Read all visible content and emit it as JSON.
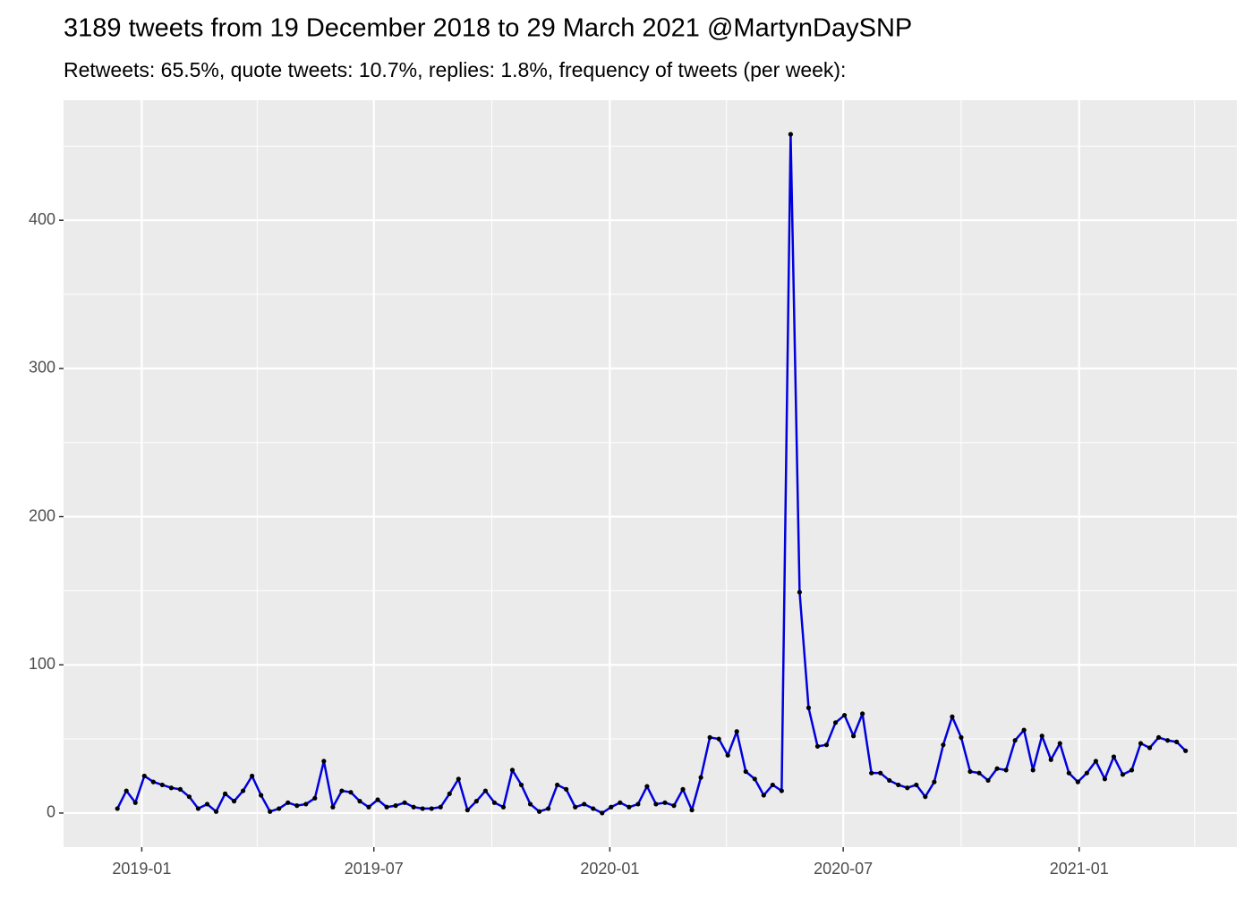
{
  "chart_data": {
    "type": "line",
    "title": "3189 tweets from 19 December 2018 to 29 March 2021 @MartynDaySNP",
    "subtitle": "Retweets: 65.5%, quote tweets: 10.7%, replies: 1.8%, frequency of tweets (per week):",
    "x": [
      "2018-12-13",
      "2018-12-20",
      "2018-12-27",
      "2019-01-03",
      "2019-01-10",
      "2019-01-17",
      "2019-01-24",
      "2019-01-31",
      "2019-02-07",
      "2019-02-14",
      "2019-02-21",
      "2019-02-28",
      "2019-03-07",
      "2019-03-14",
      "2019-03-21",
      "2019-03-28",
      "2019-04-04",
      "2019-04-11",
      "2019-04-18",
      "2019-04-25",
      "2019-05-02",
      "2019-05-09",
      "2019-05-16",
      "2019-05-23",
      "2019-05-30",
      "2019-06-06",
      "2019-06-13",
      "2019-06-20",
      "2019-06-27",
      "2019-07-04",
      "2019-07-11",
      "2019-07-18",
      "2019-07-25",
      "2019-08-01",
      "2019-08-08",
      "2019-08-15",
      "2019-08-22",
      "2019-08-29",
      "2019-09-05",
      "2019-09-12",
      "2019-09-19",
      "2019-09-26",
      "2019-10-03",
      "2019-10-10",
      "2019-10-17",
      "2019-10-24",
      "2019-10-31",
      "2019-11-07",
      "2019-11-14",
      "2019-11-21",
      "2019-11-28",
      "2019-12-05",
      "2019-12-12",
      "2019-12-19",
      "2019-12-26",
      "2020-01-02",
      "2020-01-09",
      "2020-01-16",
      "2020-01-23",
      "2020-01-30",
      "2020-02-06",
      "2020-02-13",
      "2020-02-20",
      "2020-02-27",
      "2020-03-05",
      "2020-03-12",
      "2020-03-19",
      "2020-03-26",
      "2020-04-02",
      "2020-04-09",
      "2020-04-16",
      "2020-04-23",
      "2020-04-30",
      "2020-05-07",
      "2020-05-14",
      "2020-05-21",
      "2020-05-28",
      "2020-06-04",
      "2020-06-11",
      "2020-06-18",
      "2020-06-25",
      "2020-07-02",
      "2020-07-09",
      "2020-07-16",
      "2020-07-23",
      "2020-07-30",
      "2020-08-06",
      "2020-08-13",
      "2020-08-20",
      "2020-08-27",
      "2020-09-03",
      "2020-09-10",
      "2020-09-17",
      "2020-09-24",
      "2020-10-01",
      "2020-10-08",
      "2020-10-15",
      "2020-10-22",
      "2020-10-29",
      "2020-11-05",
      "2020-11-12",
      "2020-11-19",
      "2020-11-26",
      "2020-12-03",
      "2020-12-10",
      "2020-12-17",
      "2020-12-24",
      "2020-12-31",
      "2021-01-07",
      "2021-01-14",
      "2021-01-21",
      "2021-01-28",
      "2021-02-04",
      "2021-02-11",
      "2021-02-18",
      "2021-02-25",
      "2021-03-04",
      "2021-03-11",
      "2021-03-18",
      "2021-03-25"
    ],
    "values": [
      3,
      15,
      7,
      25,
      21,
      19,
      17,
      16,
      11,
      3,
      6,
      1,
      13,
      8,
      15,
      25,
      12,
      1,
      3,
      7,
      5,
      6,
      10,
      35,
      4,
      15,
      14,
      8,
      4,
      9,
      4,
      5,
      7,
      4,
      3,
      3,
      4,
      13,
      23,
      2,
      8,
      15,
      7,
      4,
      29,
      19,
      6,
      1,
      3,
      19,
      16,
      4,
      6,
      3,
      0,
      4,
      7,
      4,
      6,
      18,
      6,
      7,
      5,
      16,
      2,
      24,
      51,
      50,
      39,
      55,
      28,
      23,
      12,
      19,
      15,
      458,
      149,
      71,
      45,
      46,
      61,
      66,
      52,
      67,
      27,
      27,
      22,
      19,
      17,
      19,
      11,
      21,
      46,
      65,
      51,
      28,
      27,
      22,
      30,
      29,
      49,
      56,
      29,
      52,
      36,
      47,
      27,
      21,
      27,
      35,
      23,
      38,
      26,
      29,
      47,
      44,
      51,
      49,
      48,
      42
    ],
    "color": "#0000dd",
    "point_color": "#000000",
    "xlim": [
      "2018-11-01",
      "2021-05-04"
    ],
    "xticks": [
      {
        "value": "2019-01-01",
        "label": "2019-01"
      },
      {
        "value": "2019-07-01",
        "label": "2019-07"
      },
      {
        "value": "2020-01-01",
        "label": "2020-01"
      },
      {
        "value": "2020-07-01",
        "label": "2020-07"
      },
      {
        "value": "2021-01-01",
        "label": "2021-01"
      }
    ],
    "minor_xticks": [
      "2019-04-01",
      "2019-10-01",
      "2020-04-01",
      "2020-10-01",
      "2021-04-01"
    ],
    "ylim": [
      -23,
      481
    ],
    "yticks": [
      0,
      100,
      200,
      300,
      400
    ],
    "minor_yticks": [
      50,
      150,
      250,
      350,
      450
    ],
    "grid": true
  }
}
